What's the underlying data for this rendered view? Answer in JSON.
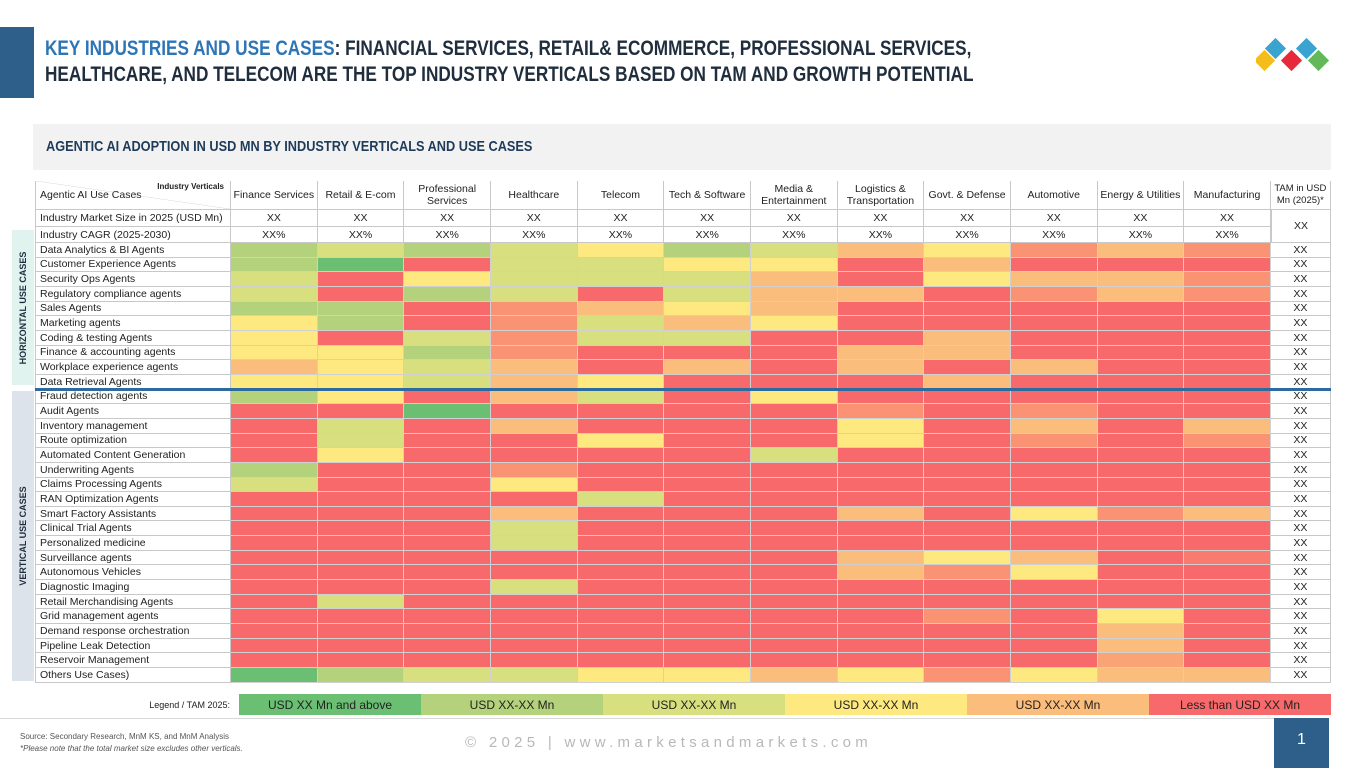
{
  "title": {
    "accent": "KEY INDUSTRIES AND USE CASES",
    "line1_rest": ": FINANCIAL SERVICES, RETAIL& ECOMMERCE, PROFESSIONAL SERVICES,",
    "line2": "HEALTHCARE, AND TELECOM ARE THE TOP INDUSTRY VERTICALS BASED ON TAM AND GROWTH POTENTIAL"
  },
  "subheader": "AGENTIC AI ADOPTION IN USD MN BY INDUSTRY VERTICALS AND USE CASES",
  "colors": {
    "brand_blue": "#2d5f8a",
    "accent_blue": "#2e75b6",
    "logo": [
      "#3ba3d0",
      "#f4bc1c",
      "#e8293b",
      "#63b95a"
    ]
  },
  "chart_data": {
    "type": "heatmap",
    "corner_top": "Industry Verticals",
    "corner_left": "Agentic AI Use Cases",
    "columns": [
      "Finance Services",
      "Retail & E-com",
      "Professional Services",
      "Healthcare",
      "Telecom",
      "Tech & Software",
      "Media & Entertainment",
      "Logistics & Transportation",
      "Govt. & Defense",
      "Automotive",
      "Energy & Utilities",
      "Manufacturing"
    ],
    "tam_header": "TAM in USD Mn (2025)*",
    "tam_meta_value": "XX",
    "market_size": {
      "label": "Industry Market Size in 2025 (USD Mn)",
      "values": [
        "XX",
        "XX",
        "XX",
        "XX",
        "XX",
        "XX",
        "XX",
        "XX",
        "XX",
        "XX",
        "XX",
        "XX"
      ]
    },
    "cagr": {
      "label": "Industry CAGR (2025-2030)",
      "values": [
        "XX%",
        "XX%",
        "XX%",
        "XX%",
        "XX%",
        "XX%",
        "XX%",
        "XX%",
        "XX%",
        "XX%",
        "XX%",
        "XX%"
      ]
    },
    "legend_title": "Legend / TAM 2025:",
    "legend": [
      {
        "label": "USD XX Mn and above",
        "color": "#6abf73"
      },
      {
        "label": "USD XX-XX Mn",
        "color": "#b4d27c"
      },
      {
        "label": "USD XX-XX Mn",
        "color": "#d8df7e"
      },
      {
        "label": "USD XX-XX Mn",
        "color": "#fde980"
      },
      {
        "label": "USD XX-XX Mn",
        "color": "#fbbd7b"
      },
      {
        "label": "Less than USD XX Mn",
        "color": "#f8696b"
      }
    ],
    "groups": [
      {
        "name": "HORIZONTAL USE CASES",
        "rows": [
          {
            "label": "Data Analytics & BI Agents",
            "tam": "XX",
            "levels": [
              1,
              2,
              1,
              2,
              3,
              1,
              2,
              4,
              3,
              4.5,
              4,
              4.5
            ]
          },
          {
            "label": "Customer Experience Agents",
            "tam": "XX",
            "levels": [
              1,
              0,
              5,
              2,
              2,
              3,
              3,
              5,
              4,
              5,
              5,
              5
            ]
          },
          {
            "label": "Security Ops Agents",
            "tam": "XX",
            "levels": [
              2,
              5,
              3,
              2,
              2,
              2,
              4,
              5,
              3,
              4,
              4,
              4.5
            ]
          },
          {
            "label": "Regulatory compliance agents",
            "tam": "XX",
            "levels": [
              2,
              5,
              1,
              2,
              5,
              2,
              4,
              4,
              5,
              4.5,
              4,
              4.5
            ]
          },
          {
            "label": "Sales Agents",
            "tam": "XX",
            "levels": [
              1,
              1,
              5,
              4.5,
              4,
              3,
              4,
              5,
              5,
              5,
              5,
              5
            ]
          },
          {
            "label": "Marketing agents",
            "tam": "XX",
            "levels": [
              3,
              1,
              5,
              4.5,
              2,
              4,
              3,
              5,
              5,
              5,
              5,
              5
            ]
          },
          {
            "label": "Coding & testing Agents",
            "tam": "XX",
            "levels": [
              3,
              5,
              2,
              4.5,
              2,
              2,
              5,
              5,
              4,
              5,
              5,
              5
            ]
          },
          {
            "label": "Finance & accounting agents",
            "tam": "XX",
            "levels": [
              3,
              3,
              1,
              4.5,
              5,
              5,
              5,
              4,
              4,
              5,
              5,
              5
            ]
          },
          {
            "label": "Workplace experience agents",
            "tam": "XX",
            "levels": [
              4,
              3,
              2,
              4,
              5,
              4,
              5,
              4,
              5,
              4,
              5,
              5
            ]
          },
          {
            "label": "Data Retrieval Agents",
            "tam": "XX",
            "levels": [
              3,
              3,
              2,
              4,
              3,
              5,
              5,
              5,
              4,
              5,
              5,
              5
            ]
          }
        ]
      },
      {
        "name": "VERTICAL USE CASES",
        "rows": [
          {
            "label": "Fraud detection agents",
            "tam": "XX",
            "levels": [
              1,
              3,
              5,
              4,
              2,
              5,
              3,
              5,
              5,
              5,
              5,
              5
            ]
          },
          {
            "label": "Audit Agents",
            "tam": "XX",
            "levels": [
              5,
              5,
              0,
              5,
              5,
              5,
              5,
              4.5,
              5,
              4.5,
              5,
              5
            ]
          },
          {
            "label": "Inventory management",
            "tam": "XX",
            "levels": [
              5,
              2,
              5,
              4,
              5,
              5,
              5,
              3,
              5,
              4,
              5,
              4
            ]
          },
          {
            "label": "Route optimization",
            "tam": "XX",
            "levels": [
              5,
              2,
              5,
              5,
              3,
              5,
              5,
              3,
              5,
              4.5,
              5,
              4.5
            ]
          },
          {
            "label": "Automated Content Generation",
            "tam": "XX",
            "levels": [
              5,
              3,
              5,
              5,
              5,
              5,
              2,
              5,
              5,
              5,
              5,
              5
            ]
          },
          {
            "label": "Underwriting Agents",
            "tam": "XX",
            "levels": [
              1,
              5,
              5,
              4.5,
              5,
              5,
              5,
              5,
              5,
              5,
              5,
              5
            ]
          },
          {
            "label": "Claims Processing Agents",
            "tam": "XX",
            "levels": [
              2,
              5,
              5,
              3,
              5,
              5,
              5,
              5,
              5,
              5,
              5,
              5
            ]
          },
          {
            "label": "RAN Optimization Agents",
            "tam": "XX",
            "levels": [
              5,
              5,
              5,
              5,
              2,
              5,
              5,
              5,
              5,
              5,
              5,
              5
            ]
          },
          {
            "label": "Smart Factory Assistants",
            "tam": "XX",
            "levels": [
              5,
              5,
              5,
              4,
              5,
              5,
              5,
              4,
              5,
              3,
              4.5,
              4
            ]
          },
          {
            "label": "Clinical Trial Agents",
            "tam": "XX",
            "levels": [
              5,
              5,
              5,
              2,
              5,
              5,
              5,
              5,
              5,
              5,
              5,
              5
            ]
          },
          {
            "label": "Personalized medicine",
            "tam": "XX",
            "levels": [
              5,
              5,
              5,
              2,
              5,
              5,
              5,
              5,
              5,
              5,
              5,
              5
            ]
          },
          {
            "label": "Surveillance agents",
            "tam": "XX",
            "levels": [
              5,
              5,
              5,
              5,
              5,
              5,
              5,
              4,
              3,
              4,
              5,
              4.8
            ]
          },
          {
            "label": "Autonomous Vehicles",
            "tam": "XX",
            "levels": [
              5,
              5,
              5,
              5,
              5,
              5,
              5,
              4,
              4.5,
              3,
              5,
              5
            ]
          },
          {
            "label": "Diagnostic Imaging",
            "tam": "XX",
            "levels": [
              5,
              5,
              5,
              2,
              5,
              5,
              5,
              5,
              5,
              5,
              5,
              5
            ]
          },
          {
            "label": "Retail Merchandising Agents",
            "tam": "XX",
            "levels": [
              5,
              2,
              5,
              5,
              5,
              5,
              5,
              5,
              5,
              5,
              5,
              5
            ]
          },
          {
            "label": "Grid management agents",
            "tam": "XX",
            "levels": [
              5,
              5,
              5,
              5,
              5,
              5,
              5,
              5,
              4.5,
              5,
              3,
              5
            ]
          },
          {
            "label": "Demand response orchestration",
            "tam": "XX",
            "levels": [
              5,
              5,
              5,
              5,
              5,
              5,
              5,
              5,
              5,
              5,
              4,
              5
            ]
          },
          {
            "label": "Pipeline Leak Detection",
            "tam": "XX",
            "levels": [
              5,
              5,
              5,
              5,
              5,
              5,
              5,
              5,
              5,
              5,
              4,
              5
            ]
          },
          {
            "label": "Reservoir Management",
            "tam": "XX",
            "levels": [
              5,
              5,
              5,
              5,
              5,
              5,
              5,
              5,
              5,
              5,
              4.3,
              5
            ]
          },
          {
            "label": "Others Use Cases)",
            "tam": "XX",
            "levels": [
              0,
              1,
              2,
              2,
              3,
              3,
              4,
              3,
              4.5,
              3,
              4,
              4
            ]
          }
        ]
      }
    ]
  },
  "footer": {
    "source": "Source: Secondary Research, MnM KS, and MnM Analysis",
    "note": "*Please note that the total market size excludes other verticals.",
    "copyright": "© 2025 | www.marketsandmarkets.com",
    "page": "1"
  }
}
